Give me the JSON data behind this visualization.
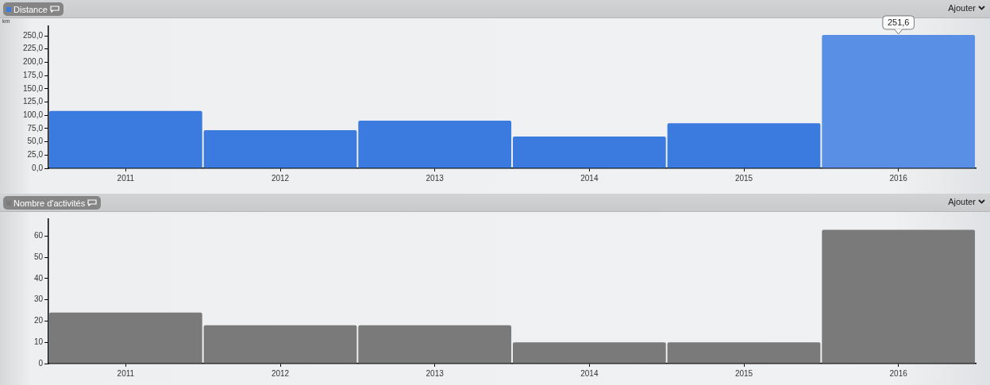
{
  "chart_data": [
    {
      "type": "bar",
      "title": "Distance",
      "ylabel": "km",
      "categories": [
        "2011",
        "2012",
        "2013",
        "2014",
        "2015",
        "2016"
      ],
      "series": [
        {
          "color": "#3b7be0",
          "colors": [
            "#3b7be0",
            "#3b7be0",
            "#3b7be0",
            "#3b7be0",
            "#3b7be0",
            "#5a8fe6"
          ],
          "values": [
            108,
            72,
            90,
            60,
            85,
            251.6
          ],
          "value_labels": [
            null,
            null,
            null,
            null,
            null,
            "251,6"
          ]
        }
      ],
      "ylim": [
        0,
        268
      ],
      "yticks": [
        {
          "value": 0,
          "label": "0,0"
        },
        {
          "value": 25,
          "label": "25,0"
        },
        {
          "value": 50,
          "label": "50,0"
        },
        {
          "value": 75,
          "label": "75,0"
        },
        {
          "value": 100,
          "label": "100,0"
        },
        {
          "value": 125,
          "label": "125,0"
        },
        {
          "value": 150,
          "label": "150,0"
        },
        {
          "value": 175,
          "label": "175,0"
        },
        {
          "value": 200,
          "label": "200,0"
        },
        {
          "value": 225,
          "label": "225,0"
        },
        {
          "value": 250,
          "label": "250,0"
        }
      ],
      "annotations": [
        "Ajouter"
      ]
    },
    {
      "type": "bar",
      "title": "Nombre d'activités",
      "categories": [
        "2011",
        "2012",
        "2013",
        "2014",
        "2015",
        "2016"
      ],
      "series": [
        {
          "color": "#7a7a7a",
          "values": [
            24,
            18,
            18,
            10,
            10,
            63
          ]
        }
      ],
      "ylim": [
        0,
        68
      ],
      "yticks": [
        0,
        10,
        20,
        30,
        40,
        50,
        60
      ],
      "annotations": [
        "Ajouter"
      ]
    }
  ]
}
